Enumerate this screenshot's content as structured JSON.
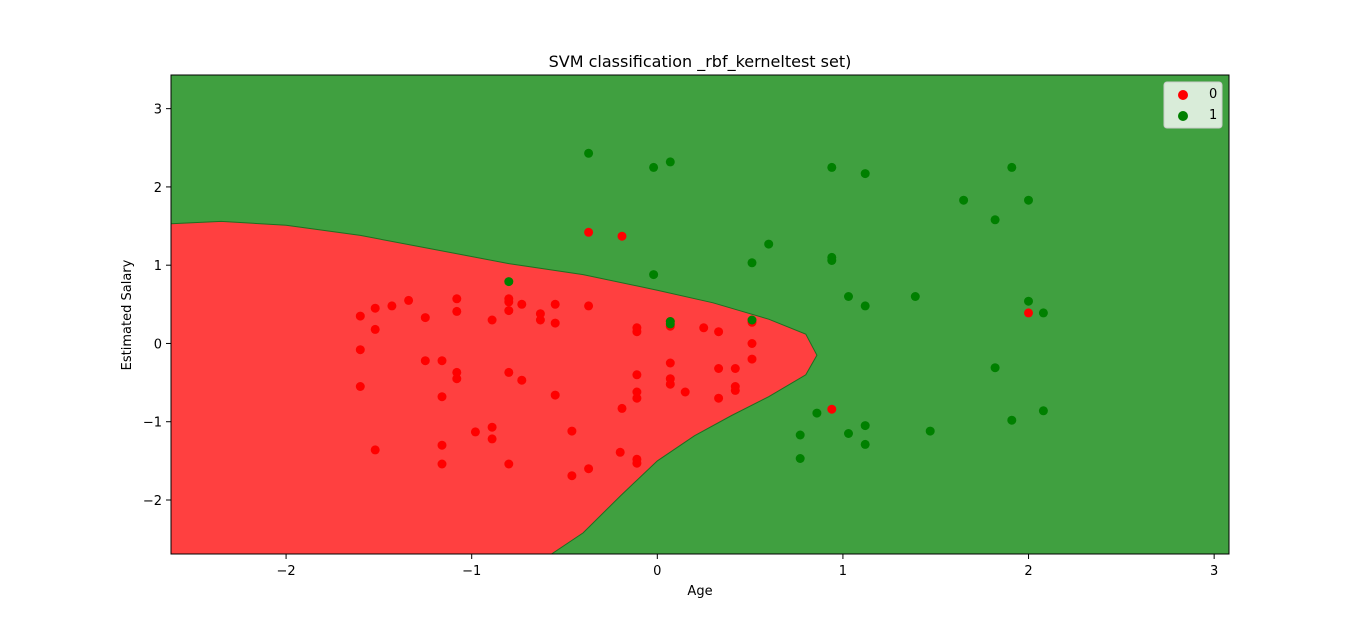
{
  "chart_data": {
    "type": "scatter",
    "title": "SVM classification _rbf_kerneltest set)",
    "xlabel": "Age",
    "ylabel": "Estimated Salary",
    "xlim": [
      -2.62,
      3.08
    ],
    "ylim": [
      -2.69,
      3.43
    ],
    "xticks": [
      -2,
      -1,
      0,
      1,
      2,
      3
    ],
    "xtick_labels": [
      "−2",
      "−1",
      "0",
      "1",
      "2",
      "3"
    ],
    "yticks": [
      -2,
      -1,
      0,
      1,
      2,
      3
    ],
    "ytick_labels": [
      "−2",
      "−1",
      "0",
      "1",
      "2",
      "3"
    ],
    "grid": false,
    "legend_position": "top-right",
    "region_colors": {
      "0": "#ff4040",
      "1": "#40a040"
    },
    "decision_boundary": [
      [
        -2.62,
        1.53
      ],
      [
        -2.35,
        1.56
      ],
      [
        -2.0,
        1.51
      ],
      [
        -1.6,
        1.38
      ],
      [
        -1.2,
        1.2
      ],
      [
        -0.8,
        1.02
      ],
      [
        -0.4,
        0.88
      ],
      [
        0.0,
        0.68
      ],
      [
        0.3,
        0.52
      ],
      [
        0.6,
        0.31
      ],
      [
        0.8,
        0.12
      ],
      [
        0.86,
        -0.15
      ],
      [
        0.8,
        -0.4
      ],
      [
        0.6,
        -0.68
      ],
      [
        0.4,
        -0.92
      ],
      [
        0.2,
        -1.18
      ],
      [
        0.0,
        -1.5
      ],
      [
        -0.2,
        -1.95
      ],
      [
        -0.4,
        -2.42
      ],
      [
        -0.57,
        -2.69
      ]
    ],
    "series": [
      {
        "name": "0",
        "color": "#ff0000",
        "points": [
          [
            -1.6,
            0.35
          ],
          [
            -1.52,
            0.45
          ],
          [
            -1.43,
            0.48
          ],
          [
            -1.34,
            0.55
          ],
          [
            -1.25,
            0.33
          ],
          [
            -1.08,
            0.57
          ],
          [
            -1.08,
            0.41
          ],
          [
            -0.89,
            0.3
          ],
          [
            -0.8,
            0.57
          ],
          [
            -0.8,
            0.53
          ],
          [
            -0.8,
            0.42
          ],
          [
            -0.73,
            0.5
          ],
          [
            -0.63,
            0.38
          ],
          [
            -0.63,
            0.3
          ],
          [
            -0.55,
            0.5
          ],
          [
            -0.55,
            0.26
          ],
          [
            -0.37,
            0.48
          ],
          [
            -1.52,
            0.18
          ],
          [
            -1.6,
            -0.08
          ],
          [
            -1.25,
            -0.22
          ],
          [
            -1.16,
            -0.22
          ],
          [
            -1.08,
            -0.37
          ],
          [
            -1.08,
            -0.45
          ],
          [
            -0.8,
            -0.37
          ],
          [
            -0.73,
            -0.47
          ],
          [
            -1.6,
            -0.55
          ],
          [
            -1.16,
            -0.68
          ],
          [
            -0.55,
            -0.66
          ],
          [
            -0.98,
            -1.13
          ],
          [
            -0.89,
            -1.07
          ],
          [
            -0.89,
            -1.22
          ],
          [
            -0.46,
            -1.12
          ],
          [
            -1.16,
            -1.3
          ],
          [
            -1.52,
            -1.36
          ],
          [
            -1.16,
            -1.54
          ],
          [
            -0.8,
            -1.54
          ],
          [
            -0.46,
            -1.69
          ],
          [
            -0.37,
            -1.6
          ],
          [
            -0.37,
            1.42
          ],
          [
            -0.19,
            1.37
          ],
          [
            -0.11,
            0.2
          ],
          [
            -0.11,
            0.15
          ],
          [
            0.07,
            0.22
          ],
          [
            0.07,
            0.28
          ],
          [
            0.25,
            0.2
          ],
          [
            0.33,
            0.15
          ],
          [
            0.51,
            0.27
          ],
          [
            0.51,
            0.0
          ],
          [
            0.51,
            -0.2
          ],
          [
            0.07,
            -0.25
          ],
          [
            -0.11,
            -0.4
          ],
          [
            0.07,
            -0.45
          ],
          [
            0.07,
            -0.52
          ],
          [
            0.33,
            -0.32
          ],
          [
            0.42,
            -0.32
          ],
          [
            0.42,
            -0.55
          ],
          [
            0.42,
            -0.6
          ],
          [
            -0.11,
            -0.62
          ],
          [
            -0.11,
            -0.7
          ],
          [
            0.15,
            -0.62
          ],
          [
            0.33,
            -0.7
          ],
          [
            -0.19,
            -0.83
          ],
          [
            -0.2,
            -1.39
          ],
          [
            -0.11,
            -1.48
          ],
          [
            -0.11,
            -1.53
          ],
          [
            0.94,
            -0.84
          ],
          [
            2.0,
            0.39
          ]
        ]
      },
      {
        "name": "1",
        "color": "#008000",
        "points": [
          [
            -0.37,
            2.43
          ],
          [
            -0.02,
            2.25
          ],
          [
            0.07,
            2.32
          ],
          [
            0.94,
            2.25
          ],
          [
            1.12,
            2.17
          ],
          [
            1.91,
            2.25
          ],
          [
            1.65,
            1.83
          ],
          [
            2.0,
            1.83
          ],
          [
            1.82,
            1.58
          ],
          [
            0.6,
            1.27
          ],
          [
            0.51,
            1.03
          ],
          [
            0.94,
            1.1
          ],
          [
            0.94,
            1.06
          ],
          [
            -0.02,
            0.88
          ],
          [
            -0.8,
            0.79
          ],
          [
            1.03,
            0.6
          ],
          [
            1.12,
            0.48
          ],
          [
            1.39,
            0.6
          ],
          [
            2.0,
            0.54
          ],
          [
            2.08,
            0.39
          ],
          [
            0.07,
            0.28
          ],
          [
            0.07,
            0.25
          ],
          [
            0.51,
            0.3
          ],
          [
            1.82,
            -0.31
          ],
          [
            0.86,
            -0.89
          ],
          [
            1.12,
            -1.05
          ],
          [
            1.03,
            -1.15
          ],
          [
            0.77,
            -1.17
          ],
          [
            1.12,
            -1.29
          ],
          [
            1.47,
            -1.12
          ],
          [
            1.91,
            -0.98
          ],
          [
            2.08,
            -0.86
          ],
          [
            0.77,
            -1.47
          ]
        ]
      }
    ]
  }
}
